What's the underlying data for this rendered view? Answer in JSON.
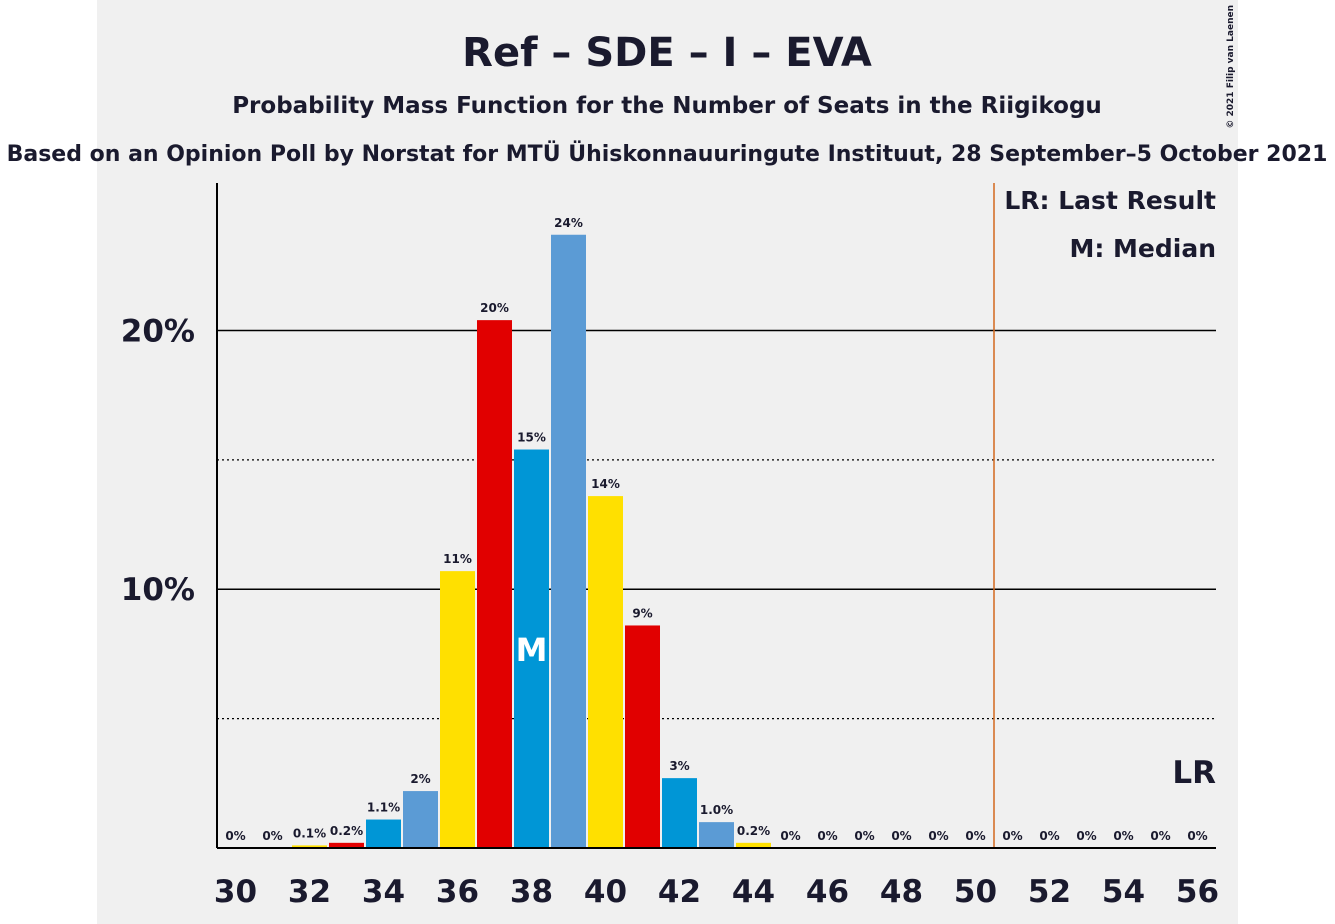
{
  "chart_data": {
    "type": "bar",
    "title": "Ref – SDE – I – EVA",
    "subtitle": "Probability Mass Function for the Number of Seats in the Riigikogu",
    "source": "Based on an Opinion Poll by Norstat for MTÜ Ühiskonnauuringute Instituut, 28 September–5 October 2021",
    "copyright": "© 2021 Filip van Laenen",
    "x": [
      30,
      31,
      32,
      33,
      34,
      35,
      36,
      37,
      38,
      39,
      40,
      41,
      42,
      43,
      44,
      45,
      46,
      47,
      48,
      49,
      50,
      51,
      52,
      53,
      54,
      55,
      56
    ],
    "values": [
      0,
      0,
      0.1,
      0.2,
      1.1,
      2.2,
      10.7,
      20.4,
      15.4,
      23.7,
      13.6,
      8.6,
      2.7,
      1.0,
      0.2,
      0,
      0,
      0,
      0,
      0,
      0,
      0,
      0,
      0,
      0,
      0,
      0
    ],
    "value_labels": [
      "0%",
      "0%",
      "0.1%",
      "0.2%",
      "1.1%",
      "2%",
      "11%",
      "20%",
      "15%",
      "24%",
      "14%",
      "9%",
      "3%",
      "1.0%",
      "0.2%",
      "0%",
      "0%",
      "0%",
      "0%",
      "0%",
      "0%",
      "0%",
      "0%",
      "0%",
      "0%",
      "0%",
      "0%"
    ],
    "colors": [
      "#0096d6",
      "#5b9bd5",
      "#ffe000",
      "#e10000",
      "#0096d6",
      "#5b9bd5",
      "#ffe000",
      "#e10000",
      "#0096d6",
      "#5b9bd5",
      "#ffe000",
      "#e10000",
      "#0096d6",
      "#5b9bd5",
      "#ffe000",
      "#e10000",
      "#0096d6",
      "#5b9bd5",
      "#ffe000",
      "#e10000",
      "#0096d6",
      "#5b9bd5",
      "#ffe000",
      "#e10000",
      "#0096d6",
      "#5b9bd5",
      "#ffe000"
    ],
    "xlim": [
      29.5,
      56.5
    ],
    "xticks": [
      30,
      32,
      34,
      36,
      38,
      40,
      42,
      44,
      46,
      48,
      50,
      52,
      54,
      56
    ],
    "ylim": [
      0,
      25.7
    ],
    "yticks": [
      {
        "value": 10,
        "label": "10%"
      },
      {
        "value": 20,
        "label": "20%"
      }
    ],
    "minor_grid": [
      5,
      15
    ],
    "median": 38,
    "median_label": "M",
    "last_result_line": 50.5,
    "last_result_label": "LR",
    "legend": [
      "LR: Last Result",
      "M: Median"
    ]
  }
}
